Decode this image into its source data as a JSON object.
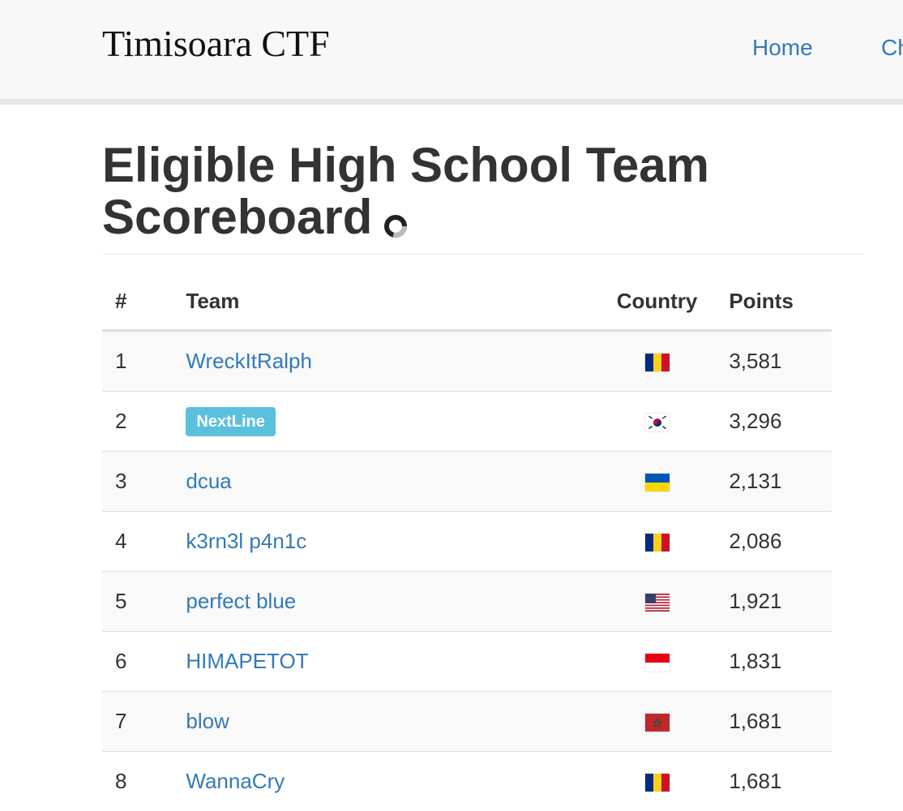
{
  "nav": {
    "brand": "Timisoara CTF",
    "links": [
      {
        "label": "Home"
      },
      {
        "label": "Ch"
      }
    ]
  },
  "page": {
    "title_line1": "Eligible High School Team",
    "title_line2": "Scoreboard",
    "title_icon": "spinner-icon"
  },
  "table": {
    "headers": {
      "rank": "#",
      "team": "Team",
      "country": "Country",
      "points": "Points"
    },
    "rows": [
      {
        "rank": "1",
        "team": "WreckItRalph",
        "highlight": false,
        "country_flag": "romania-flag-icon",
        "points": "3,581"
      },
      {
        "rank": "2",
        "team": "NextLine",
        "highlight": true,
        "country_flag": "south-korea-flag-icon",
        "points": "3,296"
      },
      {
        "rank": "3",
        "team": "dcua",
        "highlight": false,
        "country_flag": "ukraine-flag-icon",
        "points": "2,131"
      },
      {
        "rank": "4",
        "team": "k3rn3l p4n1c",
        "highlight": false,
        "country_flag": "romania-flag-icon",
        "points": "2,086"
      },
      {
        "rank": "5",
        "team": "perfect blue",
        "highlight": false,
        "country_flag": "usa-flag-icon",
        "points": "1,921"
      },
      {
        "rank": "6",
        "team": "HIMAPETOT",
        "highlight": false,
        "country_flag": "indonesia-flag-icon",
        "points": "1,831"
      },
      {
        "rank": "7",
        "team": "blow",
        "highlight": false,
        "country_flag": "morocco-flag-icon",
        "points": "1,681"
      },
      {
        "rank": "8",
        "team": "WannaCry",
        "highlight": false,
        "country_flag": "romania-flag-icon",
        "points": "1,681"
      }
    ]
  },
  "colors": {
    "link": "#337ab7",
    "badge": "#5bc0de",
    "navbar_bg": "#f8f8f8",
    "stripe": "#f9f9f9"
  }
}
